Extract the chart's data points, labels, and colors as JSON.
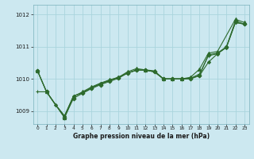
{
  "title": "Graphe pression niveau de la mer (hPa)",
  "bg_color": "#cce8f0",
  "grid_color": "#aad4dd",
  "line_color": "#2d6a2d",
  "xlim": [
    -0.5,
    23.5
  ],
  "ylim": [
    1008.6,
    1012.3
  ],
  "yticks": [
    1009,
    1010,
    1011,
    1012
  ],
  "xticks": [
    0,
    1,
    2,
    3,
    4,
    5,
    6,
    7,
    8,
    9,
    10,
    11,
    12,
    13,
    14,
    15,
    16,
    17,
    18,
    19,
    20,
    21,
    22,
    23
  ],
  "series": [
    {
      "x": [
        0,
        1,
        3,
        4,
        5,
        6,
        7,
        8,
        9,
        10,
        11,
        12,
        13,
        14,
        15,
        16,
        17,
        18,
        19,
        20,
        22,
        23
      ],
      "y": [
        1010.25,
        1009.6,
        1008.8,
        1009.45,
        1009.6,
        1009.75,
        1009.87,
        1009.97,
        1010.05,
        1010.22,
        1010.32,
        1010.28,
        1010.25,
        1010.0,
        1010.0,
        1010.0,
        1010.05,
        1010.3,
        1010.8,
        1010.85,
        1011.85,
        1011.75
      ],
      "marker": "^",
      "markersize": 3.0
    },
    {
      "x": [
        0,
        1,
        3,
        4,
        5,
        6,
        7,
        8,
        9,
        10,
        11,
        12,
        13,
        14,
        15,
        16,
        17,
        18,
        19,
        20,
        21,
        22,
        23
      ],
      "y": [
        1010.25,
        1009.6,
        1008.8,
        1009.4,
        1009.55,
        1009.7,
        1009.82,
        1009.92,
        1010.02,
        1010.18,
        1010.28,
        1010.28,
        1010.22,
        1010.0,
        1010.0,
        1010.0,
        1010.0,
        1010.1,
        1010.75,
        1010.8,
        1011.0,
        1011.8,
        1011.7
      ],
      "marker": "D",
      "markersize": 2.5
    },
    {
      "x": [
        0,
        1,
        2,
        3,
        4,
        5,
        6,
        7,
        8,
        9,
        10,
        11,
        12,
        13,
        14,
        15,
        16,
        17,
        18,
        19,
        20,
        21,
        22,
        23
      ],
      "y": [
        1009.6,
        1009.6,
        1009.2,
        1008.85,
        1009.47,
        1009.57,
        1009.72,
        1009.85,
        1009.95,
        1010.05,
        1010.18,
        1010.27,
        1010.27,
        1010.22,
        1010.0,
        1010.0,
        1010.0,
        1010.02,
        1010.15,
        1010.72,
        1010.78,
        1010.98,
        1011.75,
        1011.7
      ],
      "marker": "+",
      "markersize": 3.5
    },
    {
      "x": [
        0,
        1,
        2,
        3,
        4,
        5,
        6,
        7,
        8,
        9,
        10,
        11,
        12,
        13,
        14,
        15,
        16,
        17,
        18,
        19,
        20,
        21,
        22,
        23
      ],
      "y": [
        1010.25,
        1009.6,
        1009.2,
        1008.85,
        1009.47,
        1009.57,
        1009.72,
        1009.85,
        1009.95,
        1010.05,
        1010.18,
        1010.27,
        1010.27,
        1010.22,
        1010.0,
        1010.0,
        1010.0,
        1010.02,
        1010.1,
        1010.52,
        1010.78,
        1010.98,
        1011.75,
        1011.7
      ],
      "marker": "D",
      "markersize": 2.0
    }
  ]
}
